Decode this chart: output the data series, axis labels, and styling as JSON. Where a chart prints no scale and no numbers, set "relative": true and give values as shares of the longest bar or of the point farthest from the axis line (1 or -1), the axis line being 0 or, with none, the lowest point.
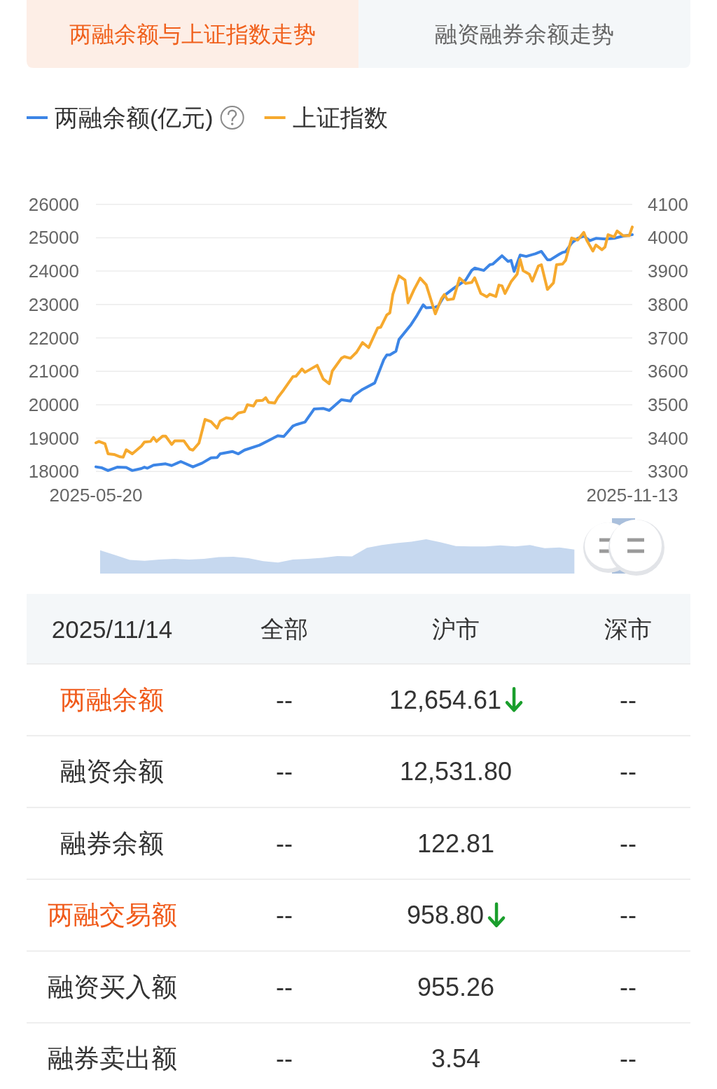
{
  "chart_data": [
    {
      "type": "line",
      "title": "两融余额与上证指数走势",
      "annotations": [
        "融资融券余额走势"
      ],
      "legend": "top left",
      "grid": "y",
      "xlim": [
        "2025-05-20",
        "2025-11-13"
      ],
      "xticks": [
        "2025-05-20",
        "2025-11-13"
      ],
      "ylim": [
        18000,
        26000
      ],
      "yticks": [
        18000,
        19000,
        20000,
        21000,
        22000,
        23000,
        24000,
        25000,
        26000
      ],
      "y2lim": [
        3300,
        4100
      ],
      "y2ticks": [
        3300,
        3400,
        3500,
        3600,
        3700,
        3800,
        3900,
        4000,
        4100
      ],
      "series": [
        {
          "name": "两融余额(亿元)",
          "color": "#3c85e6",
          "x": [
            "2025-05-20",
            "2025-05-22",
            "2025-05-24",
            "2025-05-27",
            "2025-05-30",
            "2025-06-01",
            "2025-06-04",
            "2025-06-05",
            "2025-06-06",
            "2025-06-08",
            "2025-06-12",
            "2025-06-14",
            "2025-06-17",
            "2025-06-21",
            "2025-06-24",
            "2025-06-27",
            "2025-06-29",
            "2025-06-30",
            "2025-07-04",
            "2025-07-06",
            "2025-07-08",
            "2025-07-13",
            "2025-07-16",
            "2025-07-19",
            "2025-07-21",
            "2025-07-24",
            "2025-07-25",
            "2025-07-28",
            "2025-07-31",
            "2025-08-03",
            "2025-08-05",
            "2025-08-09",
            "2025-08-12",
            "2025-08-13",
            "2025-08-16",
            "2025-08-20",
            "2025-08-23",
            "2025-08-24",
            "2025-08-25",
            "2025-08-27",
            "2025-08-28",
            "2025-09-01",
            "2025-09-03",
            "2025-09-05",
            "2025-09-06",
            "2025-09-09",
            "2025-09-10",
            "2025-09-12",
            "2025-09-15",
            "2025-09-19",
            "2025-09-21",
            "2025-09-22",
            "2025-09-25",
            "2025-09-27",
            "2025-09-28",
            "2025-10-01",
            "2025-10-03",
            "2025-10-04",
            "2025-10-05",
            "2025-10-07",
            "2025-10-09",
            "2025-10-12",
            "2025-10-14",
            "2025-10-16",
            "2025-10-17",
            "2025-10-20",
            "2025-10-21",
            "2025-10-22",
            "2025-10-24",
            "2025-10-26",
            "2025-10-28",
            "2025-10-30",
            "2025-11-01",
            "2025-11-04",
            "2025-11-07",
            "2025-11-10",
            "2025-11-13"
          ],
          "values": [
            18140,
            18110,
            18030,
            18130,
            18120,
            18030,
            18090,
            18130,
            18100,
            18190,
            18230,
            18180,
            18300,
            18140,
            18250,
            18410,
            18420,
            18530,
            18600,
            18530,
            18640,
            18790,
            18930,
            19070,
            19050,
            19360,
            19400,
            19480,
            19870,
            19890,
            19830,
            20150,
            20110,
            20270,
            20460,
            20650,
            21350,
            21490,
            21490,
            21600,
            21950,
            22400,
            22680,
            22990,
            22900,
            22920,
            22960,
            23270,
            23480,
            23730,
            24020,
            24090,
            24020,
            24190,
            24210,
            24460,
            24290,
            24320,
            23990,
            24480,
            24440,
            24520,
            24590,
            24340,
            24340,
            24510,
            24560,
            24580,
            24840,
            24980,
            25050,
            24910,
            24980,
            24960,
            24980,
            25050,
            25090
          ]
        },
        {
          "name": "上证指数",
          "color": "#f6a92e",
          "axis": "y2",
          "x": [
            "2025-05-20",
            "2025-05-21",
            "2025-05-23",
            "2025-05-24",
            "2025-05-26",
            "2025-05-28",
            "2025-05-29",
            "2025-05-30",
            "2025-06-01",
            "2025-06-04",
            "2025-06-05",
            "2025-06-07",
            "2025-06-08",
            "2025-06-09",
            "2025-06-11",
            "2025-06-12",
            "2025-06-14",
            "2025-06-15",
            "2025-06-18",
            "2025-06-20",
            "2025-06-21",
            "2025-06-23",
            "2025-06-25",
            "2025-06-27",
            "2025-06-29",
            "2025-06-30",
            "2025-07-02",
            "2025-07-04",
            "2025-07-06",
            "2025-07-08",
            "2025-07-09",
            "2025-07-11",
            "2025-07-12",
            "2025-07-14",
            "2025-07-15",
            "2025-07-16",
            "2025-07-18",
            "2025-07-19",
            "2025-07-21",
            "2025-07-24",
            "2025-07-25",
            "2025-07-27",
            "2025-07-28",
            "2025-08-01",
            "2025-08-03",
            "2025-08-05",
            "2025-08-06",
            "2025-08-09",
            "2025-08-10",
            "2025-08-12",
            "2025-08-14",
            "2025-08-16",
            "2025-08-18",
            "2025-08-21",
            "2025-08-22",
            "2025-08-24",
            "2025-08-25",
            "2025-08-26",
            "2025-08-28",
            "2025-08-30",
            "2025-08-31",
            "2025-09-02",
            "2025-09-04",
            "2025-09-06",
            "2025-09-09",
            "2025-09-11",
            "2025-09-12",
            "2025-09-13",
            "2025-09-15",
            "2025-09-17",
            "2025-09-19",
            "2025-09-21",
            "2025-09-22",
            "2025-09-24",
            "2025-09-26",
            "2025-09-27",
            "2025-09-29",
            "2025-09-30",
            "2025-10-01",
            "2025-10-02",
            "2025-10-04",
            "2025-10-06",
            "2025-10-07",
            "2025-10-08",
            "2025-10-10",
            "2025-10-11",
            "2025-10-13",
            "2025-10-14",
            "2025-10-16",
            "2025-10-18",
            "2025-10-19",
            "2025-10-21",
            "2025-10-22",
            "2025-10-24",
            "2025-10-26",
            "2025-10-28",
            "2025-10-29",
            "2025-10-31",
            "2025-11-01",
            "2025-11-03",
            "2025-11-04",
            "2025-11-05",
            "2025-11-07",
            "2025-11-08",
            "2025-11-10",
            "2025-11-12",
            "2025-11-13"
          ],
          "values": [
            3386,
            3390,
            3383,
            3353,
            3351,
            3344,
            3343,
            3365,
            3353,
            3376,
            3388,
            3390,
            3402,
            3390,
            3406,
            3406,
            3381,
            3392,
            3392,
            3367,
            3364,
            3385,
            3456,
            3449,
            3430,
            3451,
            3461,
            3458,
            3475,
            3479,
            3500,
            3496,
            3512,
            3513,
            3521,
            3507,
            3505,
            3521,
            3545,
            3584,
            3585,
            3607,
            3597,
            3618,
            3577,
            3563,
            3601,
            3639,
            3644,
            3639,
            3657,
            3686,
            3671,
            3730,
            3732,
            3769,
            3775,
            3831,
            3886,
            3873,
            3805,
            3845,
            3879,
            3859,
            3772,
            3817,
            3830,
            3814,
            3817,
            3879,
            3863,
            3866,
            3880,
            3833,
            3823,
            3831,
            3824,
            3858,
            3856,
            3833,
            3868,
            3891,
            3935,
            3901,
            3891,
            3870,
            3915,
            3919,
            3845,
            3865,
            3919,
            3921,
            3932,
            3999,
            3993,
            4016,
            3992,
            3960,
            3978,
            3964,
            3972,
            4009,
            4002,
            4020,
            4006,
            4006,
            4032
          ]
        }
      ]
    },
    {
      "type": "area",
      "relative": true,
      "color": "#c6d8ef",
      "categories": [
        null,
        null,
        null,
        null,
        null,
        null,
        null,
        null,
        null,
        null,
        null,
        null,
        null,
        null,
        null,
        null,
        null,
        null,
        null,
        null,
        null,
        null,
        null,
        null,
        null,
        null,
        null,
        null,
        null,
        null,
        null,
        null,
        null,
        null,
        null,
        null,
        null
      ],
      "values": [
        0.68,
        0.54,
        0.4,
        0.37,
        0.41,
        0.43,
        0.41,
        0.43,
        0.48,
        0.49,
        0.45,
        0.36,
        0.32,
        0.41,
        0.43,
        0.46,
        0.51,
        0.5,
        0.75,
        0.83,
        0.89,
        0.93,
        1,
        0.91,
        0.8,
        0.79,
        0.79,
        0.82,
        0.79,
        0.83,
        0.74,
        0.76,
        0.7,
        null,
        null,
        null,
        null
      ]
    },
    {
      "type": "other",
      "title": "2025/11/14",
      "categories": [
        "全部",
        "沪市",
        "深市"
      ],
      "y_categories": [
        "两融余额",
        "融资余额",
        "融券余额",
        "两融交易额",
        "融资买入额",
        "融券卖出额"
      ],
      "cell_labels": [
        [
          "--",
          "12,654.61",
          "--"
        ],
        [
          "--",
          "12,531.80",
          "--"
        ],
        [
          "--",
          "122.81",
          "--"
        ],
        [
          "--",
          "958.80",
          "--"
        ],
        [
          "--",
          "955.26",
          "--"
        ],
        [
          "--",
          "3.54",
          "--"
        ]
      ]
    }
  ]
}
